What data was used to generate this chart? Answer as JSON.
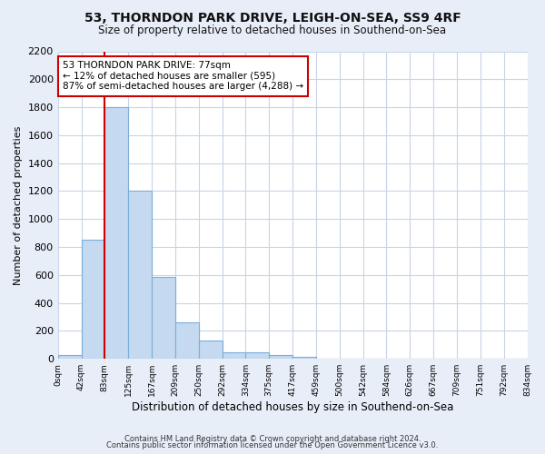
{
  "title1": "53, THORNDON PARK DRIVE, LEIGH-ON-SEA, SS9 4RF",
  "title2": "Size of property relative to detached houses in Southend-on-Sea",
  "xlabel": "Distribution of detached houses by size in Southend-on-Sea",
  "ylabel": "Number of detached properties",
  "bar_values": [
    25,
    850,
    1800,
    1200,
    585,
    260,
    130,
    45,
    45,
    30,
    15,
    0,
    0,
    0,
    0,
    0,
    0,
    0,
    0,
    0
  ],
  "bin_labels": [
    "0sqm",
    "42sqm",
    "83sqm",
    "125sqm",
    "167sqm",
    "209sqm",
    "250sqm",
    "292sqm",
    "334sqm",
    "375sqm",
    "417sqm",
    "459sqm",
    "500sqm",
    "542sqm",
    "584sqm",
    "626sqm",
    "667sqm",
    "709sqm",
    "751sqm",
    "792sqm",
    "834sqm"
  ],
  "bar_color": "#c5d9f0",
  "bar_edge_color": "#7aafda",
  "red_line_x": 2,
  "ylim": [
    0,
    2200
  ],
  "yticks": [
    0,
    200,
    400,
    600,
    800,
    1000,
    1200,
    1400,
    1600,
    1800,
    2000,
    2200
  ],
  "annotation_text": "53 THORNDON PARK DRIVE: 77sqm\n← 12% of detached houses are smaller (595)\n87% of semi-detached houses are larger (4,288) →",
  "annotation_box_color": "#ffffff",
  "annotation_border_color": "#cc0000",
  "footer1": "Contains HM Land Registry data © Crown copyright and database right 2024.",
  "footer2": "Contains public sector information licensed under the Open Government Licence v3.0.",
  "bg_color": "#e8eef8",
  "plot_bg_color": "#ffffff",
  "grid_color": "#c8d4e8"
}
